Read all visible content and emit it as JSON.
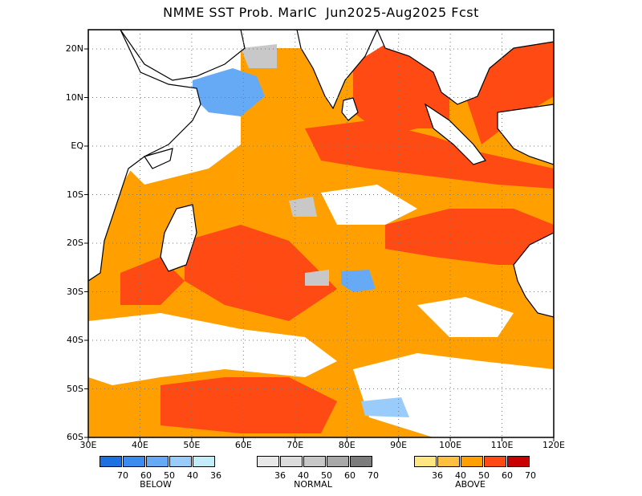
{
  "title": "NMME SST Prob. MarIC  Jun2025-Aug2025 Fcst",
  "lat_labels": [
    "20N",
    "10N",
    "EQ",
    "10S",
    "20S",
    "30S",
    "40S",
    "50S",
    "60S"
  ],
  "lon_labels": [
    "30E",
    "40E",
    "50E",
    "60E",
    "70E",
    "80E",
    "90E",
    "100E",
    "110E",
    "120E"
  ],
  "legend": {
    "below": {
      "caption": "BELOW",
      "ticks": [
        "70",
        "60",
        "50",
        "40",
        "36"
      ],
      "colors": [
        "#1e6fe0",
        "#3c8cf0",
        "#66aaf5",
        "#99ccfa",
        "#c2ecf8"
      ]
    },
    "normal": {
      "caption": "NORMAL",
      "ticks": [
        "36",
        "40",
        "50",
        "60",
        "70"
      ],
      "colors": [
        "#e8e8e8",
        "#dcdcdc",
        "#c8c8c8",
        "#a8a8a8",
        "#7c7c7c"
      ]
    },
    "above": {
      "caption": "ABOVE",
      "ticks": [
        "36",
        "40",
        "50",
        "60",
        "70"
      ],
      "colors": [
        "#ffe680",
        "#ffc040",
        "#ffa000",
        "#ff4a14",
        "#c80000"
      ]
    }
  },
  "map_colors": {
    "orange": "#ffa000",
    "red_orange": "#ff4a14",
    "light_orange": "#ffc040",
    "blue": "#66aaf5",
    "light_blue": "#99ccfa",
    "grey": "#c8c8c8",
    "land_outline": "#000000"
  }
}
